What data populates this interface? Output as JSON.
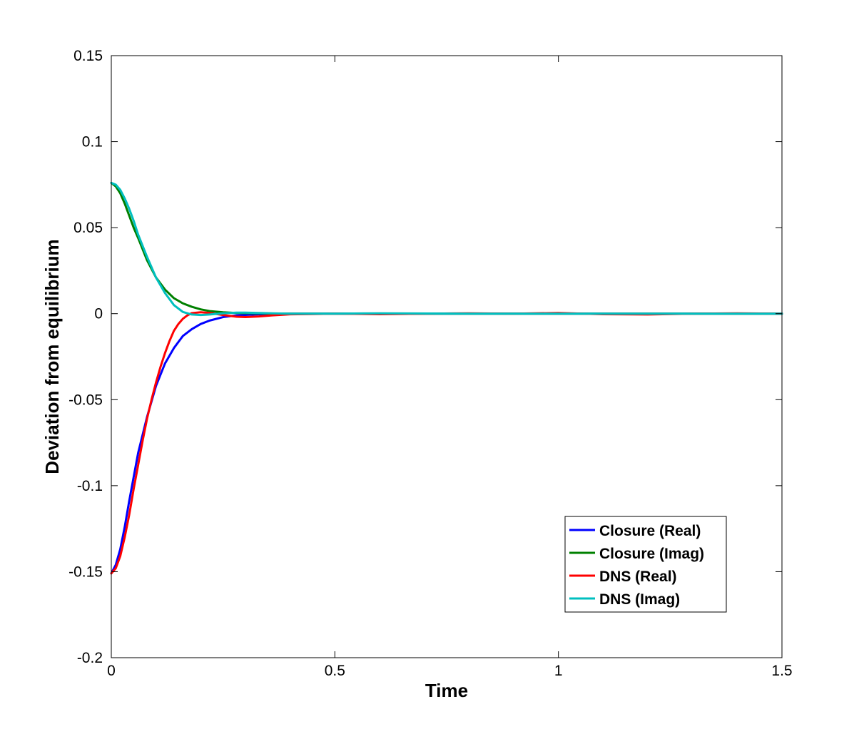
{
  "chart_data": {
    "type": "line",
    "title": "",
    "xlabel": "Time",
    "ylabel": "Deviation from equilibrium",
    "xlim": [
      0,
      1.5
    ],
    "ylim": [
      -0.2,
      0.15
    ],
    "xticks": [
      0,
      0.5,
      1,
      1.5
    ],
    "xtick_labels": [
      "0",
      "0.5",
      "1",
      "1.5"
    ],
    "yticks": [
      -0.2,
      -0.15,
      -0.1,
      -0.05,
      0,
      0.05,
      0.1,
      0.15
    ],
    "ytick_labels": [
      "-0.2",
      "-0.15",
      "-0.1",
      "-0.05",
      "0",
      "0.05",
      "0.1",
      "0.15"
    ],
    "grid": false,
    "legend_position": "bottom-right",
    "series": [
      {
        "name": "Closure (Real)",
        "color": "#0000ff",
        "x": [
          0,
          0.01,
          0.02,
          0.03,
          0.04,
          0.05,
          0.06,
          0.08,
          0.1,
          0.12,
          0.14,
          0.16,
          0.18,
          0.2,
          0.22,
          0.25,
          0.28,
          0.32,
          0.36,
          0.4,
          0.5,
          0.6,
          0.8,
          1.0,
          1.2,
          1.5
        ],
        "y": [
          -0.151,
          -0.146,
          -0.137,
          -0.124,
          -0.109,
          -0.095,
          -0.081,
          -0.06,
          -0.042,
          -0.029,
          -0.02,
          -0.013,
          -0.009,
          -0.006,
          -0.004,
          -0.002,
          -0.001,
          -0.0005,
          -0.0002,
          0,
          0,
          0,
          0,
          0,
          0,
          0
        ]
      },
      {
        "name": "Closure (Imag)",
        "color": "#008000",
        "x": [
          0,
          0.01,
          0.02,
          0.03,
          0.04,
          0.05,
          0.06,
          0.08,
          0.1,
          0.12,
          0.14,
          0.16,
          0.18,
          0.2,
          0.22,
          0.25,
          0.28,
          0.32,
          0.36,
          0.4,
          0.5,
          0.6,
          0.8,
          1.0,
          1.2,
          1.5
        ],
        "y": [
          0.076,
          0.074,
          0.07,
          0.064,
          0.057,
          0.05,
          0.044,
          0.031,
          0.021,
          0.014,
          0.009,
          0.006,
          0.004,
          0.0025,
          0.0015,
          0.0008,
          0.0004,
          0.0002,
          0.0001,
          0,
          0,
          0,
          0,
          0,
          0,
          0
        ]
      },
      {
        "name": "DNS (Real)",
        "color": "#ff0000",
        "x": [
          0,
          0.01,
          0.02,
          0.03,
          0.04,
          0.05,
          0.06,
          0.07,
          0.08,
          0.09,
          0.1,
          0.11,
          0.12,
          0.13,
          0.14,
          0.15,
          0.16,
          0.17,
          0.18,
          0.2,
          0.22,
          0.25,
          0.28,
          0.3,
          0.33,
          0.36,
          0.4,
          0.45,
          0.5,
          0.6,
          0.7,
          0.8,
          0.9,
          1.0,
          1.1,
          1.2,
          1.3,
          1.4,
          1.5
        ],
        "y": [
          -0.151,
          -0.148,
          -0.141,
          -0.13,
          -0.117,
          -0.102,
          -0.088,
          -0.074,
          -0.061,
          -0.05,
          -0.04,
          -0.031,
          -0.023,
          -0.016,
          -0.01,
          -0.006,
          -0.003,
          -0.001,
          0.0003,
          0.0008,
          0.0004,
          -0.0008,
          -0.0018,
          -0.002,
          -0.0016,
          -0.001,
          -0.0004,
          -0.0002,
          0,
          -0.0003,
          0,
          0.0002,
          0,
          0.0004,
          -0.0003,
          -0.0005,
          0,
          0.0002,
          0
        ]
      },
      {
        "name": "DNS (Imag)",
        "color": "#00bfbf",
        "x": [
          0,
          0.01,
          0.02,
          0.03,
          0.04,
          0.05,
          0.06,
          0.08,
          0.1,
          0.12,
          0.14,
          0.16,
          0.18,
          0.2,
          0.22,
          0.25,
          0.28,
          0.3,
          0.33,
          0.36,
          0.4,
          0.5,
          0.6,
          0.8,
          1.0,
          1.2,
          1.5
        ],
        "y": [
          0.076,
          0.075,
          0.072,
          0.067,
          0.061,
          0.054,
          0.046,
          0.033,
          0.021,
          0.012,
          0.005,
          0.001,
          -0.0005,
          -0.0008,
          -0.0005,
          0.0002,
          0.0006,
          0.0006,
          0.0004,
          0.0002,
          0,
          0,
          0.0002,
          0,
          0,
          0,
          0
        ]
      }
    ]
  }
}
